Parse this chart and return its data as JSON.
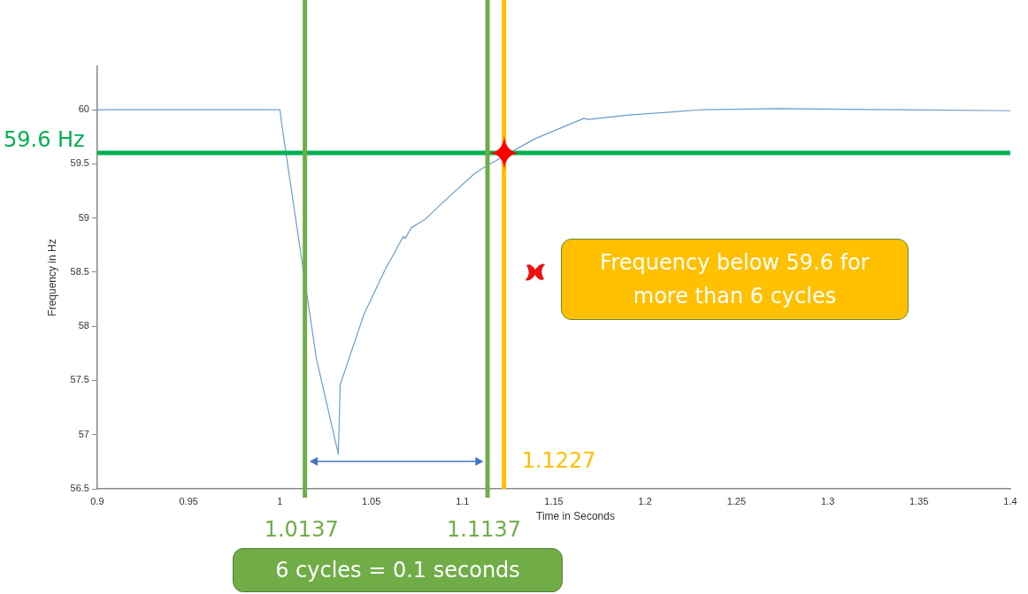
{
  "chart_data": {
    "type": "line",
    "xlabel": "Time in Seconds",
    "ylabel": "Frequency in Hz",
    "x": [
      0.9,
      1.0,
      1.001,
      1.004,
      1.02,
      1.032,
      1.033,
      1.046,
      1.0575,
      1.0676,
      1.0686,
      1.072,
      1.0797,
      1.089,
      1.106,
      1.111,
      1.1395,
      1.1665,
      1.169,
      1.191,
      1.232,
      1.273,
      1.334,
      1.4
    ],
    "series": [
      {
        "color": "#6a9ec9",
        "values": [
          60,
          60,
          59.87,
          59.52,
          57.7,
          56.82,
          57.46,
          58.11,
          58.52,
          58.83,
          58.81,
          58.91,
          58.99,
          59.14,
          59.4,
          59.46,
          59.73,
          59.92,
          59.91,
          59.95,
          60,
          60.01,
          60,
          59.99
        ]
      }
    ],
    "xlim": [
      0.9,
      1.4
    ],
    "xticks": [
      0.9,
      0.95,
      1,
      1.05,
      1.1,
      1.15,
      1.2,
      1.25,
      1.3,
      1.35,
      1.4
    ],
    "ylim": [
      56.5,
      60.4
    ],
    "yticks": [
      56.5,
      57,
      57.5,
      58,
      58.5,
      59,
      59.5,
      60
    ],
    "grid": false,
    "legend": false,
    "marker": "none",
    "line_style": "solid",
    "ref_lines": [
      {
        "axis": "y",
        "value": 59.6,
        "label": "59.6 Hz",
        "color": "#00b050"
      },
      {
        "axis": "x",
        "value": 1.0137,
        "label": "1.0137",
        "color": "#70ad47"
      },
      {
        "axis": "x",
        "value": 1.1137,
        "label": "1.1137",
        "color": "#70ad47"
      },
      {
        "axis": "x",
        "value": 1.1227,
        "label": "1.1227",
        "color": "#ffc000"
      }
    ],
    "annotations": [
      "Frequency below 59.6 for more than 6 cycles",
      "6 cycles = 0.1 seconds"
    ]
  }
}
